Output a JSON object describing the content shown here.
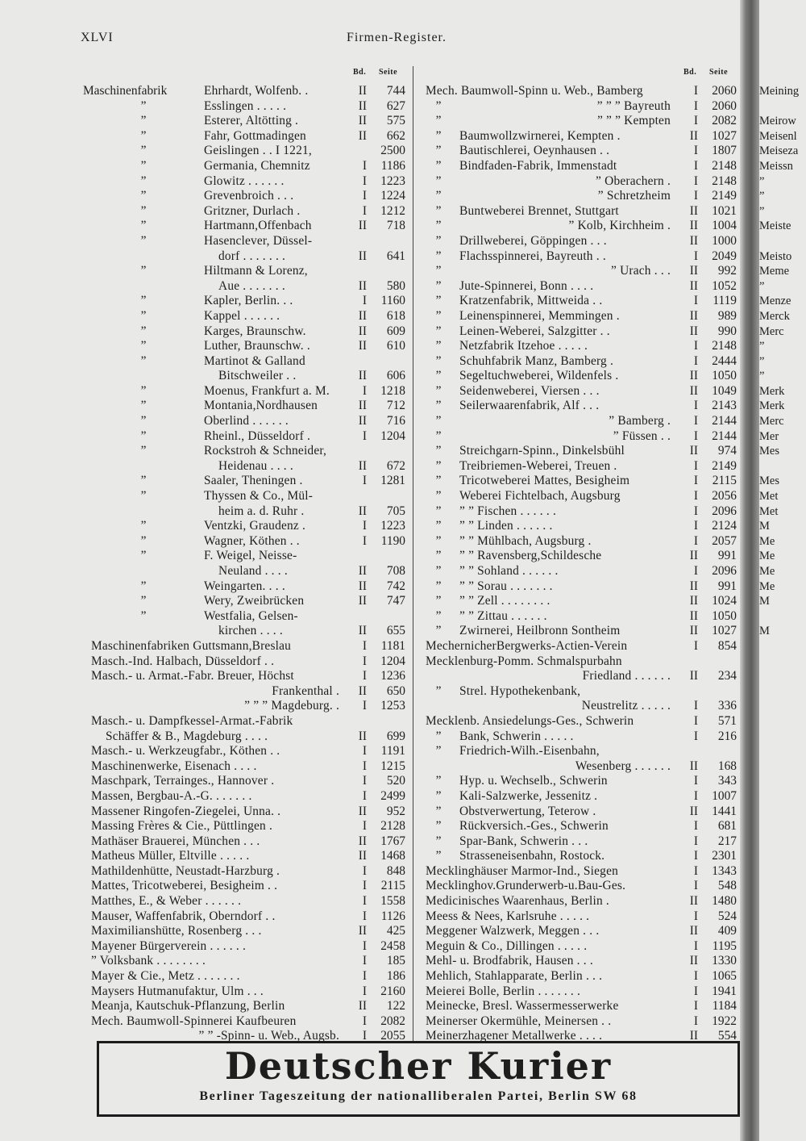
{
  "header": {
    "page_number": "XLVI",
    "title": "Firmen-Register."
  },
  "columns_header": {
    "bd": "Bd.",
    "seite": "Seite"
  },
  "left": [
    {
      "l": "Maschinenfabrik",
      "t": "Ehrhardt, Wolfenb. .",
      "b": "II",
      "p": "744"
    },
    {
      "l": "”",
      "t": "Esslingen . . . . .",
      "b": "II",
      "p": "627"
    },
    {
      "l": "”",
      "t": "Esterer, Altötting .",
      "b": "II",
      "p": "575"
    },
    {
      "l": "”",
      "t": "Fahr, Gottmadingen",
      "b": "II",
      "p": "662"
    },
    {
      "l": "”",
      "t": "Geislingen . . I 1221,",
      "b": "",
      "p": "2500"
    },
    {
      "l": "”",
      "t": "Germania, Chemnitz",
      "b": "I",
      "p": "1186"
    },
    {
      "l": "”",
      "t": "Glowitz . . . . . .",
      "b": "I",
      "p": "1223"
    },
    {
      "l": "”",
      "t": "Grevenbroich . . .",
      "b": "I",
      "p": "1224"
    },
    {
      "l": "”",
      "t": "Gritzner, Durlach .",
      "b": "I",
      "p": "1212"
    },
    {
      "l": "”",
      "t": "Hartmann,Offenbach",
      "b": "II",
      "p": "718"
    },
    {
      "l": "”",
      "t": "Hasenclever, Düssel-",
      "b": "",
      "p": ""
    },
    {
      "l": "",
      "t": "dorf . . . . . . .",
      "b": "II",
      "p": "641",
      "cont": true
    },
    {
      "l": "”",
      "t": "Hiltmann & Lorenz,",
      "b": "",
      "p": ""
    },
    {
      "l": "",
      "t": "Aue . . . . . . .",
      "b": "II",
      "p": "580",
      "cont": true
    },
    {
      "l": "”",
      "t": "Kapler, Berlin. . .",
      "b": "I",
      "p": "1160"
    },
    {
      "l": "”",
      "t": "Kappel . . . . . .",
      "b": "II",
      "p": "618"
    },
    {
      "l": "”",
      "t": "Karges, Braunschw.",
      "b": "II",
      "p": "609"
    },
    {
      "l": "”",
      "t": "Luther, Braunschw. .",
      "b": "II",
      "p": "610"
    },
    {
      "l": "”",
      "t": "Martinot & Galland",
      "b": "",
      "p": ""
    },
    {
      "l": "",
      "t": "Bitschweiler . .",
      "b": "II",
      "p": "606",
      "cont": true
    },
    {
      "l": "”",
      "t": "Moenus, Frankfurt a. M.",
      "b": "I",
      "p": "1218"
    },
    {
      "l": "”",
      "t": "Montania,Nordhausen",
      "b": "II",
      "p": "712"
    },
    {
      "l": "”",
      "t": "Oberlind . . . . . .",
      "b": "II",
      "p": "716"
    },
    {
      "l": "”",
      "t": "Rheinl., Düsseldorf .",
      "b": "I",
      "p": "1204"
    },
    {
      "l": "”",
      "t": "Rockstroh & Schneider,",
      "b": "",
      "p": ""
    },
    {
      "l": "",
      "t": "Heidenau . . . .",
      "b": "II",
      "p": "672",
      "cont": true
    },
    {
      "l": "”",
      "t": "Saaler, Theningen .",
      "b": "I",
      "p": "1281"
    },
    {
      "l": "”",
      "t": "Thyssen & Co., Mül-",
      "b": "",
      "p": ""
    },
    {
      "l": "",
      "t": "heim a. d. Ruhr .",
      "b": "II",
      "p": "705",
      "cont": true
    },
    {
      "l": "”",
      "t": "Ventzki, Graudenz .",
      "b": "I",
      "p": "1223"
    },
    {
      "l": "”",
      "t": "Wagner, Köthen . .",
      "b": "I",
      "p": "1190"
    },
    {
      "l": "”",
      "t": "F. Weigel, Neisse-",
      "b": "",
      "p": ""
    },
    {
      "l": "",
      "t": "Neuland . . . .",
      "b": "II",
      "p": "708",
      "cont": true
    },
    {
      "l": "”",
      "t": "Weingarten. . . .",
      "b": "II",
      "p": "742"
    },
    {
      "l": "”",
      "t": "Wery, Zweibrücken",
      "b": "II",
      "p": "747"
    },
    {
      "l": "”",
      "t": "Westfalia, Gelsen-",
      "b": "",
      "p": ""
    },
    {
      "l": "",
      "t": "kirchen . . . .",
      "b": "II",
      "p": "655",
      "cont": true
    },
    {
      "l": "",
      "t": "Maschinenfabriken Guttsmann,Breslau",
      "b": "I",
      "p": "1181",
      "full": true
    },
    {
      "l": "",
      "t": "Masch.-Ind. Halbach, Düsseldorf . .",
      "b": "I",
      "p": "1204",
      "full": true
    },
    {
      "l": "",
      "t": "Masch.- u. Armat.-Fabr. Breuer, Höchst",
      "b": "I",
      "p": "1236",
      "full": true
    },
    {
      "l": "",
      "t": "Frankenthal .",
      "b": "II",
      "p": "650",
      "full": true,
      "right": true
    },
    {
      "l": "",
      "t": "”      ”      ”          Magdeburg. .",
      "b": "I",
      "p": "1253",
      "full": true,
      "right": true
    },
    {
      "l": "",
      "t": "Masch.- u. Dampfkessel-Armat.-Fabrik",
      "b": "",
      "p": "",
      "full": true
    },
    {
      "l": "",
      "t": "Schäffer & B., Magdeburg . . . .",
      "b": "II",
      "p": "699",
      "full": true,
      "cont": true
    },
    {
      "l": "",
      "t": "Masch.- u. Werkzeugfabr., Köthen . .",
      "b": "I",
      "p": "1191",
      "full": true
    },
    {
      "l": "",
      "t": "Maschinenwerke, Eisenach . . . .",
      "b": "I",
      "p": "1215",
      "full": true
    },
    {
      "l": "",
      "t": "Maschpark, Terrainges., Hannover .",
      "b": "I",
      "p": "520",
      "full": true
    },
    {
      "l": "",
      "t": "Massen, Bergbau-A.-G. . . . . . .",
      "b": "I",
      "p": "2499",
      "full": true
    },
    {
      "l": "",
      "t": "Massener Ringofen-Ziegelei, Unna. .",
      "b": "II",
      "p": "952",
      "full": true
    },
    {
      "l": "",
      "t": "Massing Frères & Cie., Püttlingen .",
      "b": "I",
      "p": "2128",
      "full": true
    },
    {
      "l": "",
      "t": "Mathäser Brauerei, München . . .",
      "b": "II",
      "p": "1767",
      "full": true
    },
    {
      "l": "",
      "t": "Matheus Müller, Eltville . . . . .",
      "b": "II",
      "p": "1468",
      "full": true
    },
    {
      "l": "",
      "t": "Mathildenhütte, Neustadt-Harzburg .",
      "b": "I",
      "p": "848",
      "full": true
    },
    {
      "l": "",
      "t": "Mattes, Tricotweberei, Besigheim . .",
      "b": "I",
      "p": "2115",
      "full": true
    },
    {
      "l": "",
      "t": "Matthes, E., & Weber . . . . . .",
      "b": "I",
      "p": "1558",
      "full": true
    },
    {
      "l": "",
      "t": "Mauser, Waffenfabrik, Oberndorf . .",
      "b": "I",
      "p": "1126",
      "full": true
    },
    {
      "l": "",
      "t": "Maximilianshütte, Rosenberg . . .",
      "b": "II",
      "p": "425",
      "full": true
    },
    {
      "l": "",
      "t": "Mayener Bürgerverein . . . . . .",
      "b": "I",
      "p": "2458",
      "full": true
    },
    {
      "l": "",
      "t": "”        Volksbank . . . . . . . .",
      "b": "I",
      "p": "185",
      "full": true
    },
    {
      "l": "",
      "t": "Mayer & Cie., Metz . . . . . . .",
      "b": "I",
      "p": "186",
      "full": true
    },
    {
      "l": "",
      "t": "Maysers Hutmanufaktur, Ulm . . .",
      "b": "I",
      "p": "2160",
      "full": true
    },
    {
      "l": "",
      "t": "Meanja, Kautschuk-Pflanzung, Berlin",
      "b": "II",
      "p": "122",
      "full": true
    },
    {
      "l": "",
      "t": "Mech. Baumwoll-Spinnerei Kaufbeuren",
      "b": "I",
      "p": "2082",
      "full": true
    },
    {
      "l": "",
      "t": "”         ”       -Spinn- u. Web., Augsb.",
      "b": "I",
      "p": "2055",
      "full": true,
      "right": true
    }
  ],
  "right": [
    {
      "l": "",
      "t": "Mech. Baumwoll-Spinn u. Web., Bamberg",
      "b": "I",
      "p": "2060",
      "full": true
    },
    {
      "l": "”",
      "t": "”        ”     ”   Bayreuth",
      "b": "I",
      "p": "2060",
      "right": true
    },
    {
      "l": "”",
      "t": "”        ”     ”   Kempten",
      "b": "I",
      "p": "2082",
      "right": true
    },
    {
      "l": "”",
      "t": "Baumwollzwirnerei, Kempten .",
      "b": "II",
      "p": "1027"
    },
    {
      "l": "”",
      "t": "Bautischlerei, Oeynhausen . .",
      "b": "I",
      "p": "1807"
    },
    {
      "l": "”",
      "t": "Bindfaden-Fabrik, Immenstadt",
      "b": "I",
      "p": "2148"
    },
    {
      "l": "”",
      "t": "”            Oberachern .",
      "b": "I",
      "p": "2148",
      "right": true
    },
    {
      "l": "”",
      "t": "”            Schretzheim",
      "b": "I",
      "p": "2149",
      "right": true
    },
    {
      "l": "”",
      "t": "Buntweberei Brennet, Stuttgart",
      "b": "II",
      "p": "1021"
    },
    {
      "l": "”",
      "t": "”        Kolb, Kirchheim .",
      "b": "II",
      "p": "1004",
      "right": true
    },
    {
      "l": "”",
      "t": "Drillweberei, Göppingen . . .",
      "b": "II",
      "p": "1000"
    },
    {
      "l": "”",
      "t": "Flachsspinnerei, Bayreuth . .",
      "b": "I",
      "p": "2049"
    },
    {
      "l": "”",
      "t": "”        Urach . . .",
      "b": "II",
      "p": "992",
      "right": true
    },
    {
      "l": "”",
      "t": "Jute-Spinnerei, Bonn . . . .",
      "b": "II",
      "p": "1052"
    },
    {
      "l": "”",
      "t": "Kratzenfabrik, Mittweida . .",
      "b": "I",
      "p": "1119"
    },
    {
      "l": "”",
      "t": "Leinenspinnerei, Memmingen .",
      "b": "II",
      "p": "989"
    },
    {
      "l": "”",
      "t": "Leinen-Weberei, Salzgitter . .",
      "b": "II",
      "p": "990"
    },
    {
      "l": "”",
      "t": "Netzfabrik Itzehoe . . . . .",
      "b": "I",
      "p": "2148"
    },
    {
      "l": "”",
      "t": "Schuhfabrik Manz, Bamberg .",
      "b": "I",
      "p": "2444"
    },
    {
      "l": "”",
      "t": "Segeltuchweberei, Wildenfels .",
      "b": "II",
      "p": "1050"
    },
    {
      "l": "”",
      "t": "Seidenweberei, Viersen . . .",
      "b": "II",
      "p": "1049"
    },
    {
      "l": "”",
      "t": "Seilerwaarenfabrik, Alf . . .",
      "b": "I",
      "p": "2143"
    },
    {
      "l": "”",
      "t": "”        Bamberg .",
      "b": "I",
      "p": "2144",
      "right": true
    },
    {
      "l": "”",
      "t": "”        Füssen . .",
      "b": "I",
      "p": "2144",
      "right": true
    },
    {
      "l": "”",
      "t": "Streichgarn-Spinn., Dinkelsbühl",
      "b": "II",
      "p": "974"
    },
    {
      "l": "”",
      "t": "Treibriemen-Weberei, Treuen .",
      "b": "I",
      "p": "2149"
    },
    {
      "l": "”",
      "t": "Tricotweberei Mattes, Besigheim",
      "b": "I",
      "p": "2115"
    },
    {
      "l": "”",
      "t": "Weberei Fichtelbach, Augsburg",
      "b": "I",
      "p": "2056"
    },
    {
      "l": "”",
      "t": "”   ”   Fischen . . . . . .",
      "b": "I",
      "p": "2096"
    },
    {
      "l": "”",
      "t": "”   ”   Linden . . . . . .",
      "b": "I",
      "p": "2124"
    },
    {
      "l": "”",
      "t": "”   ”   Mühlbach, Augsburg .",
      "b": "I",
      "p": "2057"
    },
    {
      "l": "”",
      "t": "”   ”   Ravensberg,Schildesche",
      "b": "II",
      "p": "991"
    },
    {
      "l": "”",
      "t": "”   ”   Sohland . . . . . .",
      "b": "I",
      "p": "2096"
    },
    {
      "l": "”",
      "t": "”   ”   Sorau . . . . . . .",
      "b": "II",
      "p": "991"
    },
    {
      "l": "”",
      "t": "”   ”   Zell . . . . . . . .",
      "b": "II",
      "p": "1024"
    },
    {
      "l": "”",
      "t": "”   ”   Zittau . . . . . .",
      "b": "II",
      "p": "1050"
    },
    {
      "l": "”",
      "t": "Zwirnerei, Heilbronn Sontheim",
      "b": "II",
      "p": "1027"
    },
    {
      "l": "",
      "t": "MechernicherBergwerks-Actien-Verein",
      "b": "I",
      "p": "854",
      "full": true
    },
    {
      "l": "",
      "t": "Mecklenburg-Pomm. Schmalspurbahn",
      "b": "",
      "p": "",
      "full": true
    },
    {
      "l": "",
      "t": "Friedland . . . . . .",
      "b": "II",
      "p": "234",
      "full": true,
      "right": true
    },
    {
      "l": "”",
      "t": "Strel. Hypothekenbank,",
      "b": "",
      "p": ""
    },
    {
      "l": "",
      "t": "Neustrelitz . . . . .",
      "b": "I",
      "p": "336",
      "full": true,
      "right": true
    },
    {
      "l": "",
      "t": "Mecklenb. Ansiedelungs-Ges., Schwerin",
      "b": "I",
      "p": "571",
      "full": true
    },
    {
      "l": "”",
      "t": "Bank, Schwerin . . . . .",
      "b": "I",
      "p": "216"
    },
    {
      "l": "”",
      "t": "Friedrich-Wilh.-Eisenbahn,",
      "b": "",
      "p": ""
    },
    {
      "l": "",
      "t": "Wesenberg . . . . . .",
      "b": "II",
      "p": "168",
      "full": true,
      "right": true
    },
    {
      "l": "”",
      "t": "Hyp. u. Wechselb., Schwerin",
      "b": "I",
      "p": "343"
    },
    {
      "l": "”",
      "t": "Kali-Salzwerke, Jessenitz .",
      "b": "I",
      "p": "1007"
    },
    {
      "l": "”",
      "t": "Obstverwertung, Teterow .",
      "b": "II",
      "p": "1441"
    },
    {
      "l": "”",
      "t": "Rückversich.-Ges., Schwerin",
      "b": "I",
      "p": "681"
    },
    {
      "l": "”",
      "t": "Spar-Bank, Schwerin . . .",
      "b": "I",
      "p": "217"
    },
    {
      "l": "”",
      "t": "Strasseneisenbahn, Rostock.",
      "b": "I",
      "p": "2301"
    },
    {
      "l": "",
      "t": "Mecklinghäuser Marmor-Ind., Siegen",
      "b": "I",
      "p": "1343",
      "full": true
    },
    {
      "l": "",
      "t": "Mecklinghov.Grunderwerb-u.Bau-Ges.",
      "b": "I",
      "p": "548",
      "full": true
    },
    {
      "l": "",
      "t": "Medicinisches Waarenhaus, Berlin .",
      "b": "II",
      "p": "1480",
      "full": true
    },
    {
      "l": "",
      "t": "Meess & Nees, Karlsruhe . . . . .",
      "b": "I",
      "p": "524",
      "full": true
    },
    {
      "l": "",
      "t": "Meggener Walzwerk, Meggen . . .",
      "b": "II",
      "p": "409",
      "full": true
    },
    {
      "l": "",
      "t": "Meguin & Co., Dillingen . . . . .",
      "b": "I",
      "p": "1195",
      "full": true
    },
    {
      "l": "",
      "t": "Mehl- u. Brodfabrik, Hausen . . .",
      "b": "II",
      "p": "1330",
      "full": true
    },
    {
      "l": "",
      "t": "Mehlich, Stahlapparate, Berlin . . .",
      "b": "I",
      "p": "1065",
      "full": true
    },
    {
      "l": "",
      "t": "Meierei Bolle, Berlin . . . . . . .",
      "b": "I",
      "p": "1941",
      "full": true
    },
    {
      "l": "",
      "t": "Meinecke, Bresl. Wassermesserwerke",
      "b": "I",
      "p": "1184",
      "full": true
    },
    {
      "l": "",
      "t": "Meinerser Okermühle, Meinersen . .",
      "b": "I",
      "p": "1922",
      "full": true
    },
    {
      "l": "",
      "t": "Meinerzhagener Metallwerke . . . .",
      "b": "II",
      "p": "554",
      "full": true
    }
  ],
  "next_page_fragments": [
    "Meining",
    "",
    "Meirow",
    "Meisenl",
    "Meiseza",
    "Meissn",
    "”",
    "”",
    "”",
    "Meiste",
    "",
    "Meisto",
    "Meme",
    "”",
    "Menze",
    "Merck",
    "Merc",
    "”",
    "”",
    "”",
    "Merk",
    "Merk",
    "Merc",
    "Mer",
    "Mes",
    "",
    "Mes",
    "Met",
    "Met",
    "M",
    "Me",
    "Me",
    "Me",
    "Me",
    "M",
    "",
    "M"
  ],
  "advertisement": {
    "title": "Deutscher Kurier",
    "subtitle": "Berliner Tageszeitung der nationalliberalen Partei, Berlin SW 68"
  }
}
